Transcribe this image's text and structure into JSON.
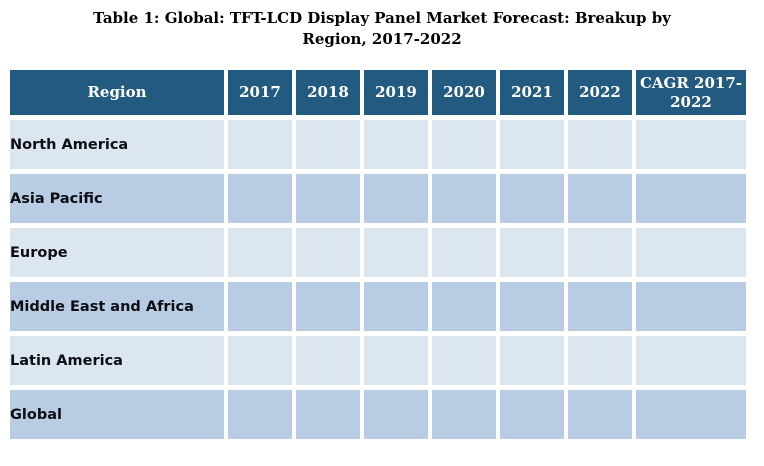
{
  "title": {
    "line1": "Table 1: Global: TFT-LCD Display Panel Market Forecast: Breakup by",
    "line2": "Region, 2017-2022"
  },
  "colors": {
    "header_bg": "#235A80",
    "header_text": "#FFFFFF",
    "row_light": "#DCE6F1",
    "row_dark": "#B8CCE4",
    "body_text": "#0D0D12",
    "title_text": "#000000"
  },
  "chart_data": {
    "type": "table",
    "title": "Table 1: Global: TFT-LCD Display Panel Market Forecast: Breakup by Region, 2017-2022",
    "columns": [
      "Region",
      "2017",
      "2018",
      "2019",
      "2020",
      "2021",
      "2022",
      "CAGR 2017-2022"
    ],
    "rows": [
      {
        "region": "North America",
        "values": [
          "",
          "",
          "",
          "",
          "",
          "",
          ""
        ]
      },
      {
        "region": "Asia Pacific",
        "values": [
          "",
          "",
          "",
          "",
          "",
          "",
          ""
        ]
      },
      {
        "region": "Europe",
        "values": [
          "",
          "",
          "",
          "",
          "",
          "",
          ""
        ]
      },
      {
        "region": "Middle East and Africa",
        "values": [
          "",
          "",
          "",
          "",
          "",
          "",
          ""
        ]
      },
      {
        "region": "Latin America",
        "values": [
          "",
          "",
          "",
          "",
          "",
          "",
          ""
        ]
      },
      {
        "region": "Global",
        "values": [
          "",
          "",
          "",
          "",
          "",
          "",
          ""
        ]
      }
    ]
  }
}
